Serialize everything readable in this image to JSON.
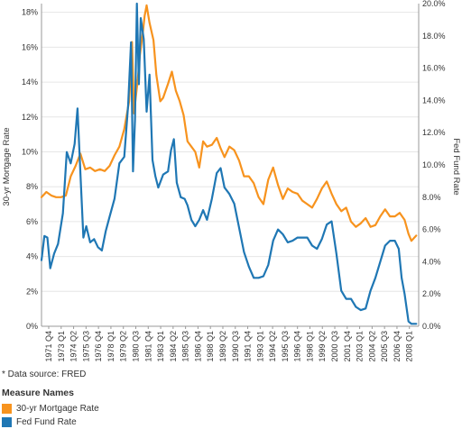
{
  "colors": {
    "mortgage": "#f7931e",
    "fed": "#1f77b4",
    "grid": "#e6e6e6",
    "axis": "#999999"
  },
  "footnote": "* Data source: FRED",
  "legend": {
    "title": "Measure Names",
    "items": [
      {
        "label": "30-yr Mortgage Rate",
        "color": "#f7931e"
      },
      {
        "label": "Fed Fund Rate",
        "color": "#1f77b4"
      }
    ]
  },
  "chart_data": {
    "type": "line",
    "ylabel_left": "30-yr Mortgage Rate",
    "ylabel_right": "Fed Fund Rate",
    "left_axis": {
      "ticks": [
        "0%",
        "2%",
        "4%",
        "6%",
        "8%",
        "10%",
        "12%",
        "14%",
        "16%",
        "18%"
      ],
      "ylim": [
        0,
        18.5
      ]
    },
    "right_axis": {
      "ticks": [
        "0.0%",
        "2.0%",
        "4.0%",
        "6.0%",
        "8.0%",
        "10.0%",
        "12.0%",
        "14.0%",
        "16.0%",
        "18.0%",
        "20.0%"
      ],
      "ylim": [
        0,
        20
      ]
    },
    "x_ticks": [
      "1971 Q4",
      "1973 Q1",
      "1974 Q2",
      "1975 Q3",
      "1976 Q4",
      "1978 Q1",
      "1979 Q2",
      "1980 Q3",
      "1981 Q4",
      "1983 Q1",
      "1984 Q2",
      "1985 Q3",
      "1986 Q4",
      "1988 Q1",
      "1989 Q2",
      "1990 Q3",
      "1991 Q4",
      "1993 Q1",
      "1994 Q2",
      "1995 Q3",
      "1996 Q4",
      "1998 Q1",
      "1999 Q2",
      "2000 Q3",
      "2001 Q4",
      "2003 Q1",
      "2004 Q2",
      "2005 Q3",
      "2006 Q4",
      "2008 Q1"
    ],
    "x_range": [
      1971.0,
      2009.75
    ],
    "grid": true,
    "series": [
      {
        "name": "30-yr Mortgage Rate",
        "axis": "left",
        "color": "#f7931e",
        "points": [
          [
            1971.0,
            7.4
          ],
          [
            1971.5,
            7.7
          ],
          [
            1972.0,
            7.5
          ],
          [
            1972.5,
            7.4
          ],
          [
            1973.0,
            7.4
          ],
          [
            1973.5,
            7.5
          ],
          [
            1974.0,
            8.6
          ],
          [
            1974.5,
            9.2
          ],
          [
            1975.0,
            9.9
          ],
          [
            1975.5,
            9.0
          ],
          [
            1976.0,
            9.1
          ],
          [
            1976.5,
            8.9
          ],
          [
            1977.0,
            9.0
          ],
          [
            1977.5,
            8.9
          ],
          [
            1978.0,
            9.2
          ],
          [
            1978.5,
            9.8
          ],
          [
            1979.0,
            10.3
          ],
          [
            1979.5,
            11.3
          ],
          [
            1980.0,
            12.9
          ],
          [
            1980.3,
            16.3
          ],
          [
            1980.5,
            12.2
          ],
          [
            1980.9,
            14.2
          ],
          [
            1981.1,
            15.5
          ],
          [
            1981.4,
            16.8
          ],
          [
            1981.6,
            17.8
          ],
          [
            1981.8,
            18.4
          ],
          [
            1982.1,
            17.4
          ],
          [
            1982.5,
            16.4
          ],
          [
            1982.8,
            14.4
          ],
          [
            1983.2,
            12.9
          ],
          [
            1983.5,
            13.1
          ],
          [
            1984.0,
            13.9
          ],
          [
            1984.4,
            14.6
          ],
          [
            1984.8,
            13.5
          ],
          [
            1985.2,
            12.9
          ],
          [
            1985.6,
            12.1
          ],
          [
            1986.0,
            10.6
          ],
          [
            1986.4,
            10.3
          ],
          [
            1986.8,
            10.0
          ],
          [
            1987.2,
            9.1
          ],
          [
            1987.6,
            10.6
          ],
          [
            1988.0,
            10.3
          ],
          [
            1988.5,
            10.4
          ],
          [
            1989.0,
            10.8
          ],
          [
            1989.4,
            10.2
          ],
          [
            1989.8,
            9.7
          ],
          [
            1990.3,
            10.3
          ],
          [
            1990.8,
            10.1
          ],
          [
            1991.3,
            9.5
          ],
          [
            1991.8,
            8.6
          ],
          [
            1992.3,
            8.6
          ],
          [
            1992.8,
            8.2
          ],
          [
            1993.3,
            7.4
          ],
          [
            1993.8,
            7.0
          ],
          [
            1994.3,
            8.4
          ],
          [
            1994.8,
            9.1
          ],
          [
            1995.3,
            8.1
          ],
          [
            1995.8,
            7.3
          ],
          [
            1996.3,
            7.9
          ],
          [
            1996.8,
            7.7
          ],
          [
            1997.3,
            7.6
          ],
          [
            1997.8,
            7.2
          ],
          [
            1998.3,
            7.0
          ],
          [
            1998.8,
            6.8
          ],
          [
            1999.3,
            7.3
          ],
          [
            1999.8,
            7.9
          ],
          [
            2000.3,
            8.3
          ],
          [
            2000.8,
            7.6
          ],
          [
            2001.3,
            7.0
          ],
          [
            2001.8,
            6.6
          ],
          [
            2002.3,
            6.8
          ],
          [
            2002.8,
            6.0
          ],
          [
            2003.3,
            5.7
          ],
          [
            2003.8,
            5.9
          ],
          [
            2004.3,
            6.2
          ],
          [
            2004.8,
            5.7
          ],
          [
            2005.3,
            5.8
          ],
          [
            2005.8,
            6.3
          ],
          [
            2006.3,
            6.7
          ],
          [
            2006.8,
            6.3
          ],
          [
            2007.3,
            6.3
          ],
          [
            2007.8,
            6.5
          ],
          [
            2008.3,
            6.1
          ],
          [
            2008.7,
            5.3
          ],
          [
            2009.0,
            4.9
          ],
          [
            2009.5,
            5.2
          ]
        ]
      },
      {
        "name": "Fed Fund Rate",
        "axis": "right",
        "color": "#1f77b4",
        "points": [
          [
            1971.0,
            4.1
          ],
          [
            1971.3,
            5.6
          ],
          [
            1971.6,
            5.5
          ],
          [
            1971.9,
            3.6
          ],
          [
            1972.3,
            4.5
          ],
          [
            1972.7,
            5.1
          ],
          [
            1973.2,
            7.0
          ],
          [
            1973.6,
            10.8
          ],
          [
            1974.0,
            10.1
          ],
          [
            1974.4,
            11.3
          ],
          [
            1974.7,
            13.5
          ],
          [
            1975.0,
            9.5
          ],
          [
            1975.3,
            5.5
          ],
          [
            1975.6,
            6.2
          ],
          [
            1976.0,
            5.2
          ],
          [
            1976.4,
            5.4
          ],
          [
            1976.8,
            4.9
          ],
          [
            1977.2,
            4.7
          ],
          [
            1977.6,
            5.9
          ],
          [
            1978.0,
            6.8
          ],
          [
            1978.5,
            7.9
          ],
          [
            1979.0,
            10.1
          ],
          [
            1979.5,
            10.5
          ],
          [
            1979.9,
            13.7
          ],
          [
            1980.2,
            17.6
          ],
          [
            1980.4,
            9.6
          ],
          [
            1980.6,
            12.8
          ],
          [
            1980.8,
            20.0
          ],
          [
            1981.0,
            15.0
          ],
          [
            1981.2,
            19.1
          ],
          [
            1981.5,
            17.8
          ],
          [
            1981.8,
            13.3
          ],
          [
            1982.1,
            15.6
          ],
          [
            1982.4,
            10.3
          ],
          [
            1982.7,
            9.3
          ],
          [
            1983.0,
            8.6
          ],
          [
            1983.5,
            9.4
          ],
          [
            1984.0,
            9.6
          ],
          [
            1984.3,
            10.9
          ],
          [
            1984.6,
            11.6
          ],
          [
            1984.9,
            8.9
          ],
          [
            1985.3,
            8.0
          ],
          [
            1985.7,
            7.9
          ],
          [
            1986.0,
            7.5
          ],
          [
            1986.4,
            6.6
          ],
          [
            1986.8,
            6.2
          ],
          [
            1987.2,
            6.6
          ],
          [
            1987.6,
            7.2
          ],
          [
            1988.0,
            6.6
          ],
          [
            1988.5,
            7.9
          ],
          [
            1989.0,
            9.5
          ],
          [
            1989.4,
            9.8
          ],
          [
            1989.8,
            8.6
          ],
          [
            1990.3,
            8.2
          ],
          [
            1990.8,
            7.6
          ],
          [
            1991.3,
            6.1
          ],
          [
            1991.8,
            4.6
          ],
          [
            1992.3,
            3.7
          ],
          [
            1992.8,
            3.0
          ],
          [
            1993.3,
            3.0
          ],
          [
            1993.8,
            3.1
          ],
          [
            1994.3,
            3.8
          ],
          [
            1994.8,
            5.3
          ],
          [
            1995.3,
            6.0
          ],
          [
            1995.8,
            5.7
          ],
          [
            1996.3,
            5.2
          ],
          [
            1996.8,
            5.3
          ],
          [
            1997.3,
            5.5
          ],
          [
            1997.8,
            5.5
          ],
          [
            1998.3,
            5.5
          ],
          [
            1998.8,
            5.0
          ],
          [
            1999.3,
            4.8
          ],
          [
            1999.8,
            5.4
          ],
          [
            2000.3,
            6.3
          ],
          [
            2000.8,
            6.5
          ],
          [
            2001.3,
            4.5
          ],
          [
            2001.8,
            2.2
          ],
          [
            2002.3,
            1.7
          ],
          [
            2002.8,
            1.7
          ],
          [
            2003.3,
            1.2
          ],
          [
            2003.8,
            1.0
          ],
          [
            2004.3,
            1.1
          ],
          [
            2004.8,
            2.2
          ],
          [
            2005.3,
            3.0
          ],
          [
            2005.8,
            4.0
          ],
          [
            2006.3,
            5.0
          ],
          [
            2006.8,
            5.3
          ],
          [
            2007.3,
            5.3
          ],
          [
            2007.7,
            4.8
          ],
          [
            2008.0,
            3.0
          ],
          [
            2008.3,
            2.0
          ],
          [
            2008.7,
            0.3
          ],
          [
            2009.0,
            0.15
          ],
          [
            2009.5,
            0.15
          ]
        ]
      }
    ]
  }
}
